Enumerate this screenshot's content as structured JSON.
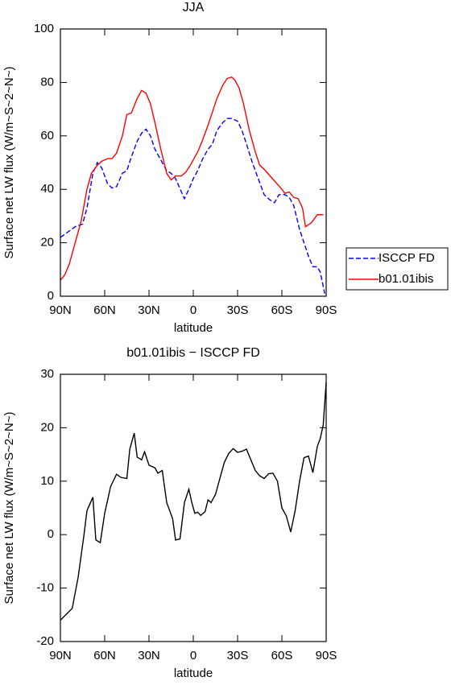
{
  "chart_data": [
    {
      "type": "line",
      "title": "JJA",
      "xlabel": "latitude",
      "ylabel": "Surface net LW flux (W/m~S~2~N~)",
      "xlim": [
        90,
        -90
      ],
      "ylim": [
        0,
        100
      ],
      "xticks": [
        {
          "value": 90,
          "label": "90N"
        },
        {
          "value": 60,
          "label": "60N"
        },
        {
          "value": 30,
          "label": "30N"
        },
        0,
        {
          "value": -30,
          "label": "30S"
        },
        {
          "value": -60,
          "label": "60S"
        },
        {
          "value": -90,
          "label": "90S"
        }
      ],
      "yticks": [
        0,
        20,
        40,
        60,
        80,
        100
      ],
      "legend": "right",
      "series": [
        {
          "name": "ISCCP FD",
          "color": "#0000ff",
          "dash": true,
          "x": [
            90,
            85,
            80,
            75,
            72,
            68,
            65,
            62,
            58,
            55,
            52,
            48,
            45,
            42,
            38,
            35,
            32,
            29,
            26,
            22,
            18,
            15,
            12,
            8,
            6,
            3,
            0,
            -3,
            -6,
            -10,
            -13,
            -16,
            -20,
            -23,
            -26,
            -30,
            -33,
            -36,
            -40,
            -44,
            -48,
            -52,
            -55,
            -58,
            -62,
            -65,
            -68,
            -72,
            -75,
            -78,
            -81,
            -84,
            -86,
            -89
          ],
          "values": [
            22,
            24,
            26,
            27,
            33,
            46,
            50,
            48,
            42,
            40.5,
            41,
            46,
            47,
            52,
            58,
            61,
            62.5,
            60,
            55,
            51,
            47,
            46,
            44,
            39,
            36.5,
            40,
            44,
            47,
            51,
            55,
            57,
            62,
            65,
            66.5,
            66.5,
            65.5,
            62,
            57,
            50,
            44,
            38,
            36,
            35,
            38,
            38,
            37,
            34,
            25,
            20,
            15,
            11,
            11,
            9,
            1
          ]
        },
        {
          "name": "b01.01ibis",
          "color": "#ff0000",
          "dash": false,
          "x": [
            90,
            87,
            84,
            80,
            76,
            72,
            69,
            65,
            62,
            58,
            55,
            52,
            48,
            45,
            42,
            38,
            35,
            32,
            29,
            26,
            22,
            18,
            15,
            12,
            8,
            5,
            2,
            0,
            -3,
            -6,
            -10,
            -13,
            -16,
            -20,
            -23,
            -26,
            -28,
            -31,
            -34,
            -38,
            -42,
            -45,
            -48,
            -52,
            -56,
            -60,
            -62,
            -65,
            -68,
            -71,
            -74,
            -76,
            -80,
            -84,
            -88
          ],
          "values": [
            6,
            8,
            12,
            20,
            28,
            40,
            46,
            49,
            50.5,
            51.5,
            51.5,
            53.5,
            60,
            68,
            68.5,
            74,
            77,
            76,
            72,
            65,
            55,
            46,
            43.5,
            45,
            45,
            46.5,
            49,
            51,
            54,
            58,
            64,
            69,
            74,
            79,
            81.5,
            82,
            81,
            78,
            72,
            62,
            54,
            49,
            47.5,
            45,
            42.5,
            40,
            38.5,
            39,
            37,
            36.5,
            33,
            26,
            27.5,
            30.5,
            30.5
          ]
        }
      ]
    },
    {
      "type": "line",
      "title": "b01.01ibis − ISCCP FD",
      "xlabel": "latitude",
      "ylabel": "Surface net LW flux (W/m~S~2~N~)",
      "xlim": [
        90,
        -90
      ],
      "ylim": [
        -20,
        30
      ],
      "xticks": [
        {
          "value": 90,
          "label": "90N"
        },
        {
          "value": 60,
          "label": "60N"
        },
        {
          "value": 30,
          "label": "30N"
        },
        0,
        {
          "value": -30,
          "label": "30S"
        },
        {
          "value": -60,
          "label": "60S"
        },
        {
          "value": -90,
          "label": "90S"
        }
      ],
      "yticks": [
        -20,
        -10,
        0,
        10,
        20,
        30
      ],
      "series": [
        {
          "color": "#000000",
          "dash": false,
          "x": [
            90,
            82,
            78,
            74,
            72,
            68,
            66,
            63,
            60,
            56,
            52,
            49,
            45,
            43,
            40,
            38,
            35,
            33,
            30,
            26,
            24,
            21,
            18,
            14,
            12,
            9,
            6,
            3,
            1,
            -1,
            -3,
            -5,
            -8,
            -10,
            -12,
            -15,
            -18,
            -21,
            -24,
            -27,
            -30,
            -33,
            -36,
            -39,
            -42,
            -45,
            -48,
            -51,
            -54,
            -57,
            -60,
            -63,
            -66,
            -69,
            -72,
            -75,
            -78,
            -81,
            -84,
            -86,
            -88,
            -90
          ],
          "values": [
            -16,
            -13.8,
            -8,
            0,
            4.5,
            7,
            -1,
            -1.5,
            4,
            9,
            11.3,
            10.7,
            10.5,
            16,
            19,
            14.5,
            14,
            15.5,
            13,
            12.5,
            11.5,
            12,
            6,
            3,
            -1,
            -0.8,
            6,
            8.5,
            6,
            4,
            4.2,
            3.6,
            4.3,
            6.5,
            6,
            7.5,
            10.5,
            13.5,
            15.2,
            16.1,
            15.4,
            15.6,
            16,
            14,
            12,
            11,
            10.5,
            11.4,
            11.5,
            10,
            5,
            3.5,
            0.5,
            4.5,
            10,
            14.4,
            14.7,
            11.6,
            16.5,
            18,
            20.5,
            28.5
          ]
        }
      ]
    }
  ]
}
